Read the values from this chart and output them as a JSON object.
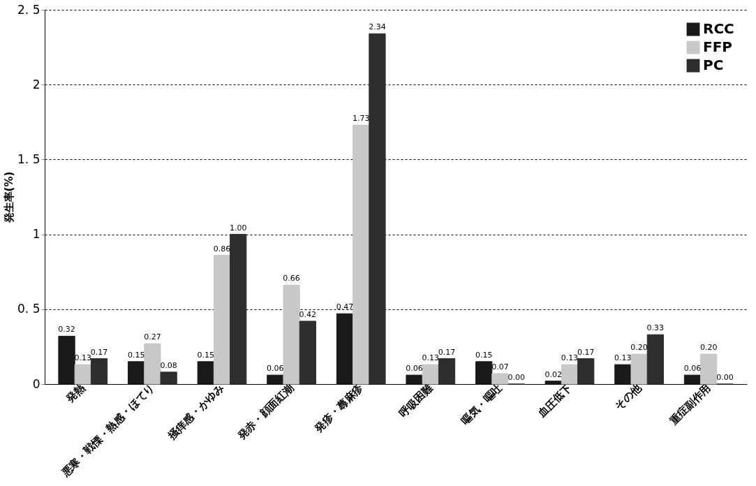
{
  "chart_data": {
    "type": "bar",
    "ylabel": "発生率(%)",
    "categories": [
      "発熱",
      "悪寒・戦慄・熱感・ほてり",
      "掻痒感・かゆみ",
      "発赤・顔面紅潮",
      "発疹・蕁麻疹",
      "呼吸困難",
      "嘔気・嘔吐",
      "血圧低下",
      "その他",
      "重症副作用"
    ],
    "series": [
      {
        "name": "RCC",
        "color": "#1a1a1a",
        "values": [
          0.32,
          0.15,
          0.15,
          0.06,
          0.47,
          0.06,
          0.15,
          0.02,
          0.13,
          0.06
        ],
        "value_labels": [
          "0.32",
          "0.15",
          "0.15",
          "0.06",
          "0.47",
          "0.06",
          "0.15",
          "0.02",
          "0.13",
          "0.06"
        ]
      },
      {
        "name": "FFP",
        "color": "#c8c8c8",
        "values": [
          0.13,
          0.27,
          0.86,
          0.66,
          1.73,
          0.13,
          0.07,
          0.13,
          0.2,
          0.2
        ],
        "value_labels": [
          "0.13",
          "0.27",
          "0.86",
          "0.66",
          "1.73",
          "0.13",
          "0.07",
          "0.13",
          "0.20",
          "0.20"
        ]
      },
      {
        "name": "PC",
        "color": "#2e2e2e",
        "values": [
          0.17,
          0.08,
          1.0,
          0.42,
          2.34,
          0.17,
          0.0,
          0.17,
          0.33,
          0.0
        ],
        "value_labels": [
          "0.17",
          "0.08",
          "1.00",
          "0.42",
          "2.34",
          "0.17",
          "0.00",
          "0.17",
          "0.33",
          "0.00"
        ]
      }
    ],
    "ylim": [
      0,
      2.5
    ],
    "yticks": [
      0,
      {
        "value": 0.5,
        "label": "0. 5"
      },
      1,
      {
        "value": 1.5,
        "label": "1. 5"
      },
      2,
      {
        "value": 2.5,
        "label": "2. 5"
      }
    ],
    "grid": "y",
    "legend": "top right"
  }
}
